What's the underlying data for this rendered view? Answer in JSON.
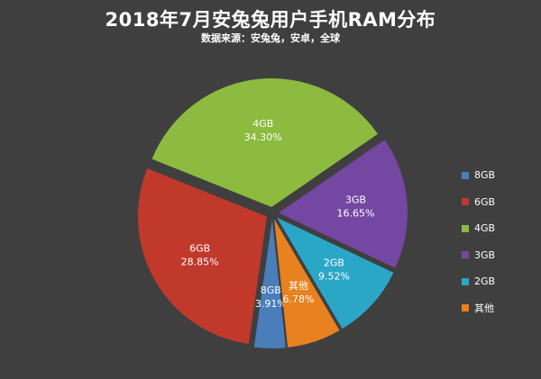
{
  "title": "2018年7月安兔兔用户手机RAM分布",
  "subtitle": "数据来源：安兔兔，安卓，全球",
  "chart_data": {
    "type": "pie",
    "title": "2018年7月安兔兔用户手机RAM分布",
    "subtitle": "数据来源：安兔兔，安卓，全球",
    "legend_position": "right",
    "slices": [
      {
        "label": "8GB",
        "value": 3.91,
        "value_label": "3.91%",
        "color": "#4a7ebb"
      },
      {
        "label": "6GB",
        "value": 28.85,
        "value_label": "28.85%",
        "color": "#c0392b"
      },
      {
        "label": "4GB",
        "value": 34.3,
        "value_label": "34.30%",
        "color": "#8dbb3f"
      },
      {
        "label": "3GB",
        "value": 16.65,
        "value_label": "16.65%",
        "color": "#7447a2"
      },
      {
        "label": "2GB",
        "value": 9.52,
        "value_label": "9.52%",
        "color": "#2aa7c7"
      },
      {
        "label": "其他",
        "value": 6.78,
        "value_label": "6.78%",
        "color": "#e8811f"
      }
    ]
  }
}
